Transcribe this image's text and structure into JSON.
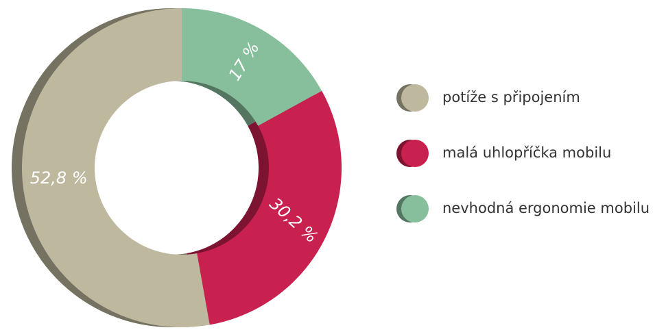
{
  "chart_data": {
    "type": "donut",
    "categories": [
      "potíže s připojením",
      "malá uhlopříčka mobilu",
      "nevhodná ergonomie mobilu"
    ],
    "values": [
      52.8,
      30.2,
      17
    ],
    "value_labels": [
      "52,8 %",
      "30,2 %",
      "17 %"
    ],
    "colors": [
      "#bdb89e",
      "#c8214f",
      "#87bf9c"
    ]
  }
}
